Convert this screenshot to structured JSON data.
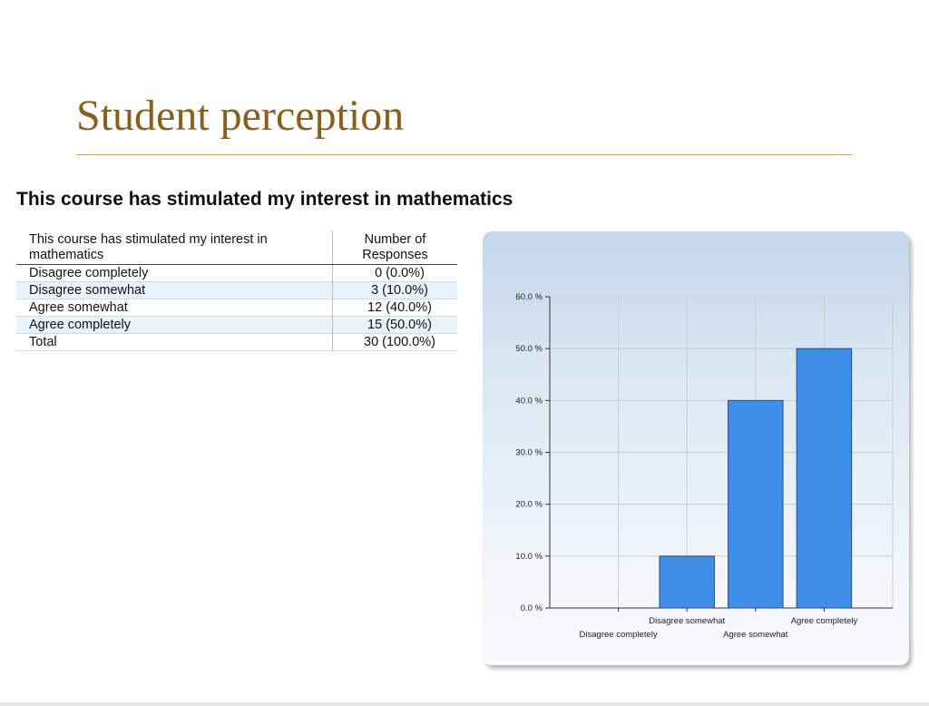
{
  "slide": {
    "title": "Student perception"
  },
  "question": "This course has stimulated my interest in mathematics",
  "table": {
    "headers": [
      "This course has stimulated my interest in mathematics",
      "Number of Responses"
    ],
    "rows": [
      {
        "label": "Disagree completely",
        "value": "0 (0.0%)"
      },
      {
        "label": "Disagree somewhat",
        "value": "3 (10.0%)"
      },
      {
        "label": "Agree somewhat",
        "value": "12 (40.0%)"
      },
      {
        "label": "Agree completely",
        "value": "15 (50.0%)"
      },
      {
        "label": "Total",
        "value": "30 (100.0%)"
      }
    ]
  },
  "colors": {
    "bar": "#3f8ee8",
    "bar_stroke": "#2a4f7a",
    "title": "#8b5e1a"
  },
  "chart_data": {
    "type": "bar",
    "categories": [
      "Disagree completely",
      "Disagree somewhat",
      "Agree somewhat",
      "Agree completely"
    ],
    "values": [
      0,
      10,
      40,
      50
    ],
    "ylim": [
      0,
      60
    ],
    "yticks": [
      0,
      10,
      20,
      30,
      40,
      50,
      60
    ],
    "ytick_labels": [
      "0.0 %",
      "10.0 %",
      "20.0 %",
      "30.0 %",
      "40.0 %",
      "50.0 %",
      "60.0 %"
    ],
    "grid": true,
    "title": "",
    "xlabel": "",
    "ylabel": ""
  }
}
